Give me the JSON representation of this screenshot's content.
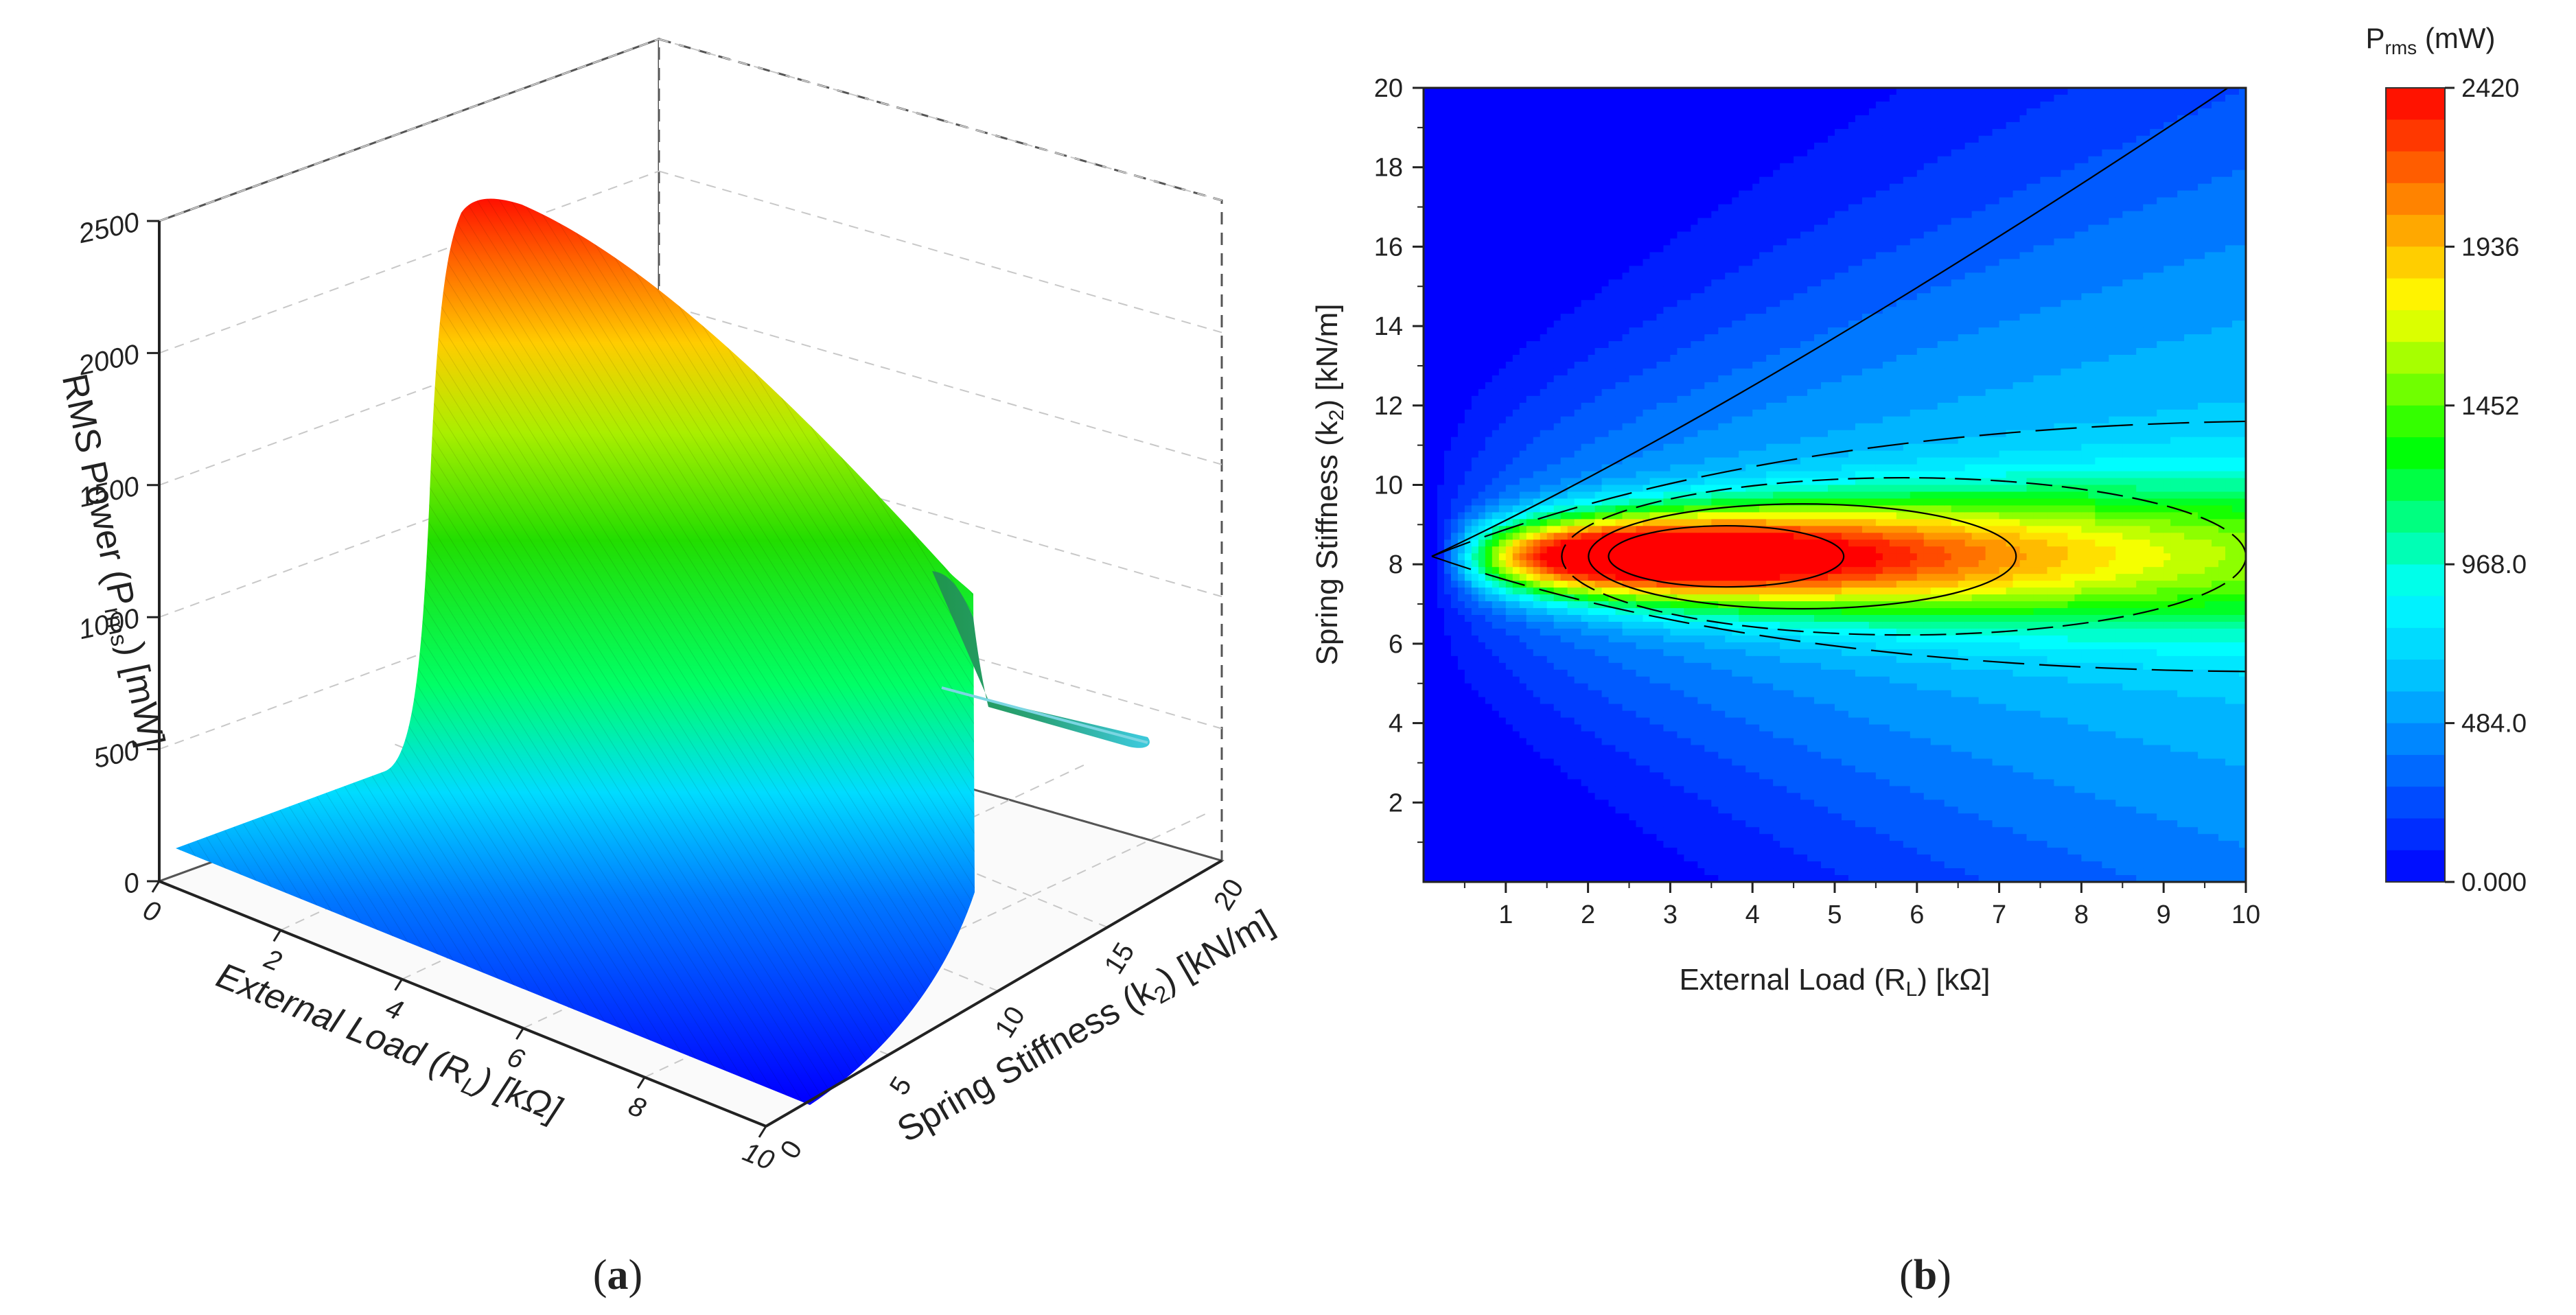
{
  "chart_data": [
    {
      "id": "a",
      "type": "surface3d",
      "panel_label": {
        "open": "(",
        "letter": "a",
        "close": ")"
      },
      "zlabel": {
        "main": "RMS Power (P",
        "sub": "rms",
        "end": ") [mW]"
      },
      "xlabel": {
        "main": "External Load (R",
        "sub": "L",
        "end": ") [kΩ]"
      },
      "ylabel": {
        "main": "Spring Stiffness (k",
        "sub": "2",
        "end": ") [kN/m]"
      },
      "z_ticks": [
        "2500",
        "2000",
        "1500",
        "1000",
        "500",
        "0"
      ],
      "x_ticks": [
        "0",
        "2",
        "4",
        "6",
        "8",
        "10"
      ],
      "y_ticks": [
        "0",
        "5",
        "10",
        "15",
        "20"
      ],
      "xlim": [
        0,
        10
      ],
      "ylim": [
        0,
        20
      ],
      "zlim": [
        0,
        2500
      ],
      "peak": {
        "load_kohm": 2.6,
        "stiffness_kn_m": 8.2,
        "power_mw": 2420
      }
    },
    {
      "id": "b",
      "type": "contour",
      "panel_label": {
        "open": "(",
        "letter": "b",
        "close": ")"
      },
      "xlabel": {
        "main": "External Load (R",
        "sub": "L",
        "end": ") [kΩ]"
      },
      "ylabel": {
        "main": "Spring Stiffness (k",
        "sub": "2",
        "end": ") [kN/m]"
      },
      "x_ticks": [
        "1",
        "2",
        "3",
        "4",
        "5",
        "6",
        "7",
        "8",
        "9",
        "10"
      ],
      "y_ticks": [
        "2",
        "4",
        "6",
        "8",
        "10",
        "12",
        "14",
        "16",
        "18",
        "20"
      ],
      "xlim": [
        0,
        10
      ],
      "ylim": [
        0,
        20
      ],
      "peak": {
        "load_kohm": 2.6,
        "stiffness_kn_m": 8.2,
        "power_mw": 2420
      },
      "colorbar": {
        "title_main": "P",
        "title_sub": "rms",
        "title_end": " (mW)",
        "ticks": [
          "2420",
          "1936",
          "1452",
          "968.0",
          "484.0",
          "0.000"
        ],
        "range": [
          0,
          2420
        ],
        "levels": 25,
        "colors": [
          "#0000ff",
          "#0044ff",
          "#0088ff",
          "#00ccff",
          "#00ffff",
          "#00ff88",
          "#00ff00",
          "#88ff00",
          "#ffff00",
          "#ffaa00",
          "#ff5500",
          "#ff0000"
        ]
      }
    }
  ]
}
